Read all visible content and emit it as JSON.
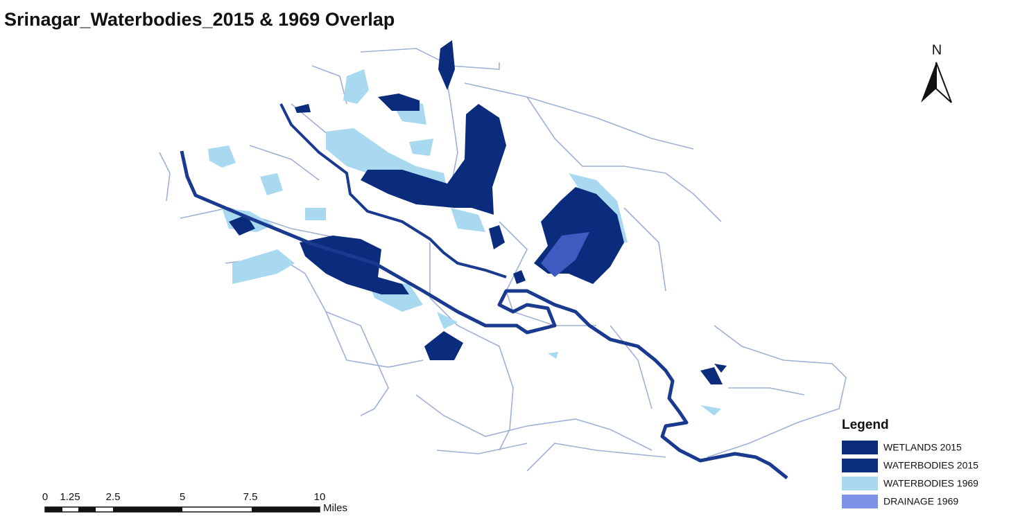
{
  "title": "Srinagar_Waterbodies_2015 & 1969 Overlap",
  "north_arrow": "N",
  "legend": {
    "title": "Legend",
    "items": [
      {
        "label": "WETLANDS 2015",
        "color": "#0b2c7c"
      },
      {
        "label": "WATERBODIES 2015",
        "color": "#0d2f80"
      },
      {
        "label": "WATERBODIES 1969",
        "color": "#a9d9f1"
      },
      {
        "label": "DRAINAGE 1969",
        "color": "#7d92e6"
      }
    ]
  },
  "scale_bar": {
    "labels": [
      "0",
      "1.25",
      "2.5",
      "5",
      "7.5",
      "10"
    ],
    "unit": "Miles"
  }
}
